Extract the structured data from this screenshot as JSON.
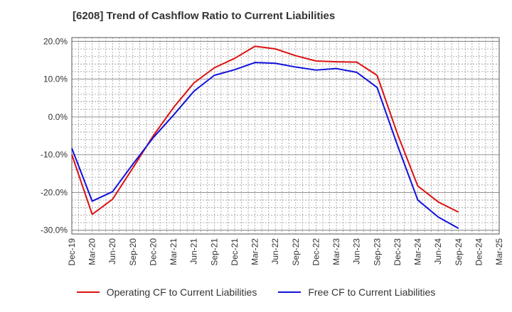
{
  "chart_data": {
    "type": "line",
    "title": "[6208]  Trend of Cashflow Ratio to Current Liabilities",
    "x": [
      "Dec-19",
      "Mar-20",
      "Jun-20",
      "Sep-20",
      "Dec-20",
      "Mar-21",
      "Jun-21",
      "Sep-21",
      "Dec-21",
      "Mar-22",
      "Jun-22",
      "Sep-22",
      "Dec-22",
      "Mar-23",
      "Jun-23",
      "Sep-23",
      "Dec-23",
      "Mar-24",
      "Jun-24",
      "Sep-24",
      "Dec-24",
      "Mar-25"
    ],
    "y_ticks": [
      "20.0%",
      "10.0%",
      "0.0%",
      "-10.0%",
      "-20.0%",
      "-30.0%"
    ],
    "y_tick_values": [
      20,
      10,
      0,
      -10,
      -20,
      -30
    ],
    "ylim": [
      -31,
      21
    ],
    "grid": true,
    "legend_position": "bottom",
    "series": [
      {
        "name": "Operating CF to Current Liabilities",
        "color": "#dd1111",
        "values": [
          -10.0,
          -25.8,
          -21.8,
          -13.5,
          -5.0,
          2.5,
          9.0,
          13.0,
          15.5,
          18.7,
          18.0,
          16.2,
          14.8,
          14.6,
          14.5,
          11.0,
          -4.5,
          -18.3,
          -22.5,
          -25.2,
          null,
          null
        ]
      },
      {
        "name": "Free CF to Current Liabilities",
        "color": "#1111dd",
        "values": [
          -8.3,
          -22.3,
          -19.8,
          -12.5,
          -5.5,
          0.5,
          6.8,
          11.0,
          12.5,
          14.4,
          14.2,
          13.2,
          12.4,
          12.8,
          11.8,
          7.8,
          -7.5,
          -22.0,
          -26.5,
          -29.5,
          null,
          null
        ]
      }
    ]
  }
}
